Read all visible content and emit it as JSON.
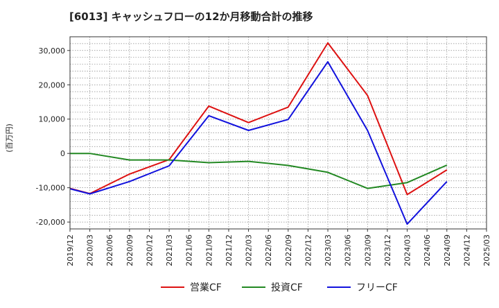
{
  "chart_data": {
    "type": "line",
    "title": "[6013]  キャッシュフローの12か月移動合計の推移",
    "ylabel": "(百万円)",
    "xlabel": "",
    "ylim": [
      -22000,
      34000
    ],
    "y_ticks": [
      -20000,
      -10000,
      0,
      10000,
      20000,
      30000
    ],
    "y_tick_labels": [
      "-20,000",
      "-10,000",
      "0",
      "10,000",
      "20,000",
      "30,000"
    ],
    "categories": [
      "2019/12",
      "2020/03",
      "2020/06",
      "2020/09",
      "2020/12",
      "2021/03",
      "2021/06",
      "2021/09",
      "2021/12",
      "2022/03",
      "2022/06",
      "2022/09",
      "2022/12",
      "2023/03",
      "2023/06",
      "2023/09",
      "2023/12",
      "2024/03",
      "2024/06",
      "2024/09",
      "2024/12",
      "2025/03"
    ],
    "grid": true,
    "legend_position": "bottom",
    "series": [
      {
        "name": "営業CF",
        "color": "#dd1111",
        "values": [
          -10200,
          -11700,
          null,
          -6000,
          null,
          -1800,
          null,
          13800,
          null,
          9000,
          null,
          13500,
          null,
          32200,
          null,
          16900,
          null,
          -12000,
          null,
          -4800,
          null,
          null
        ]
      },
      {
        "name": "投資CF",
        "color": "#228822",
        "values": [
          0,
          0,
          null,
          -1900,
          null,
          -1900,
          null,
          -2700,
          null,
          -2300,
          null,
          -3500,
          null,
          -5500,
          null,
          -10200,
          null,
          -8500,
          null,
          -3400,
          null,
          null
        ]
      },
      {
        "name": "フリーCF",
        "color": "#1111dd",
        "values": [
          -10300,
          -11800,
          null,
          -8200,
          null,
          -3600,
          null,
          11000,
          null,
          6700,
          null,
          9900,
          null,
          26700,
          null,
          6700,
          null,
          -20600,
          null,
          -8200,
          null,
          null
        ]
      }
    ]
  }
}
